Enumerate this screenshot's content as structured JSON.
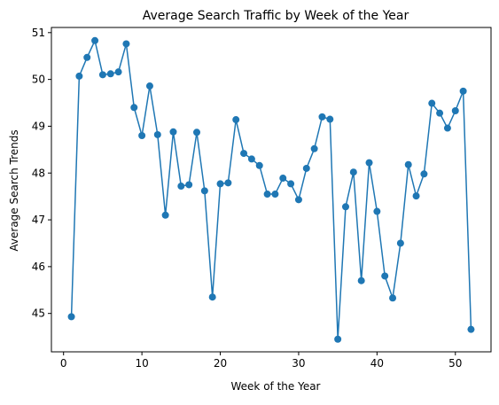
{
  "chart_data": {
    "type": "line",
    "title": "Average Search Traffic by Week of the Year",
    "xlabel": "Week of the Year",
    "ylabel": "Average Search Trends",
    "xlim": [
      -1.55,
      54.55
    ],
    "ylim": [
      44.18,
      51.11
    ],
    "xticks": [
      0,
      10,
      20,
      30,
      40,
      50
    ],
    "yticks": [
      45,
      46,
      47,
      48,
      49,
      50,
      51
    ],
    "grid": false,
    "legend": "none",
    "line_color": "#1f77b4",
    "marker": "circle",
    "series": [
      {
        "x": [
          1,
          2,
          3,
          4,
          5,
          6,
          7,
          8,
          9,
          10,
          11,
          12,
          13,
          14,
          15,
          16,
          17,
          18,
          19,
          20,
          21,
          22,
          23,
          24,
          25,
          26,
          27,
          28,
          29,
          30,
          31,
          32,
          33,
          34,
          35,
          36,
          37,
          38,
          39,
          40,
          41,
          42,
          43,
          44,
          45,
          46,
          47,
          48,
          49,
          50,
          51,
          52
        ],
        "values": [
          44.93,
          50.07,
          50.47,
          50.83,
          50.1,
          50.12,
          50.16,
          50.76,
          49.4,
          48.8,
          49.86,
          48.82,
          47.1,
          48.88,
          47.72,
          47.75,
          48.87,
          47.62,
          45.35,
          47.77,
          47.79,
          49.14,
          48.42,
          48.3,
          48.16,
          47.55,
          47.55,
          47.89,
          47.77,
          47.43,
          48.1,
          48.52,
          49.2,
          49.15,
          44.45,
          47.28,
          48.02,
          45.7,
          48.22,
          47.18,
          45.8,
          45.33,
          46.5,
          48.18,
          47.51,
          47.98,
          49.49,
          49.28,
          48.96,
          49.33,
          49.75,
          44.66
        ]
      }
    ]
  }
}
